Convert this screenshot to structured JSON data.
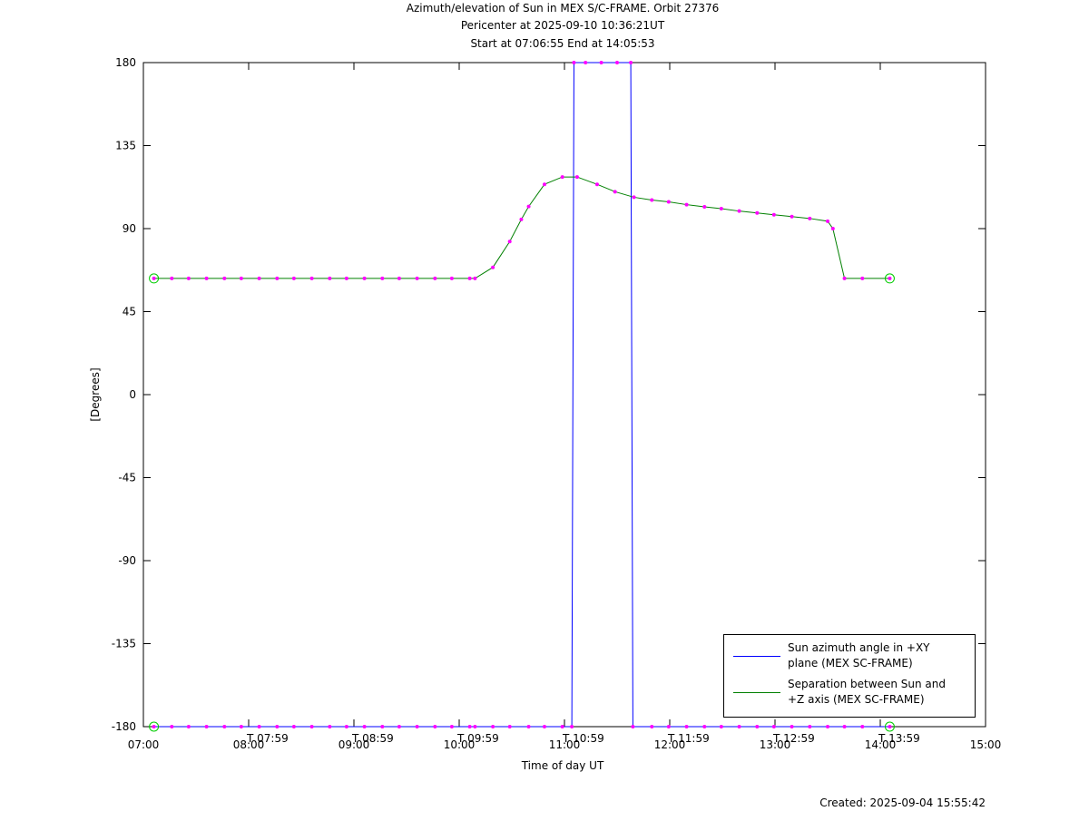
{
  "chart_data": {
    "type": "line",
    "title": "Azimuth/elevation of Sun in MEX S/C-FRAME.  Orbit 27376",
    "subtitle": [
      "Pericenter at 2025-09-10 10:36:21UT",
      "Start at 07:06:55 End at 14:05:53"
    ],
    "xlabel": "Time of day UT",
    "ylabel": "[Degrees]",
    "footer": "Created: 2025-09-04 15:55:42",
    "xlim": [
      7,
      15
    ],
    "xticks": [
      {
        "value": 7,
        "label": "07:00"
      },
      {
        "value": 8,
        "label": "08:00"
      },
      {
        "value": 9,
        "label": "09:00"
      },
      {
        "value": 10,
        "label": "10:00"
      },
      {
        "value": 11,
        "label": "11:00"
      },
      {
        "value": 12,
        "label": "12:00"
      },
      {
        "value": 13,
        "label": "13:00"
      },
      {
        "value": 14,
        "label": "14:00"
      },
      {
        "value": 15,
        "label": "15:00"
      }
    ],
    "ylim": [
      -180,
      180
    ],
    "yticks": [
      180,
      135,
      90,
      45,
      0,
      -45,
      -90,
      -135,
      -180
    ],
    "grid": false,
    "legend": "lower right",
    "marker_color": "#ff00ff",
    "annotations": [
      {
        "x": 7.983,
        "text": "T 07:59"
      },
      {
        "x": 8.983,
        "text": "T 08:59"
      },
      {
        "x": 9.983,
        "text": "T 09:59"
      },
      {
        "x": 10.983,
        "text": "T 10:59"
      },
      {
        "x": 11.983,
        "text": "T 11:59"
      },
      {
        "x": 12.983,
        "text": "T 12:59"
      },
      {
        "x": 13.983,
        "text": "T 13:59"
      }
    ],
    "series": [
      {
        "name": "Sun azimuth angle in +XY plane (MEX SC-FRAME)",
        "color": "#0000ff",
        "x": [
          7.1,
          7.27,
          7.43,
          7.6,
          7.77,
          7.93,
          8.1,
          8.27,
          8.43,
          8.6,
          8.77,
          8.93,
          9.1,
          9.27,
          9.43,
          9.6,
          9.77,
          9.93,
          10.1,
          10.15,
          10.32,
          10.48,
          10.66,
          10.81,
          10.98,
          11.07,
          11.09,
          11.2,
          11.35,
          11.5,
          11.63,
          11.65,
          11.83,
          11.99,
          12.16,
          12.33,
          12.49,
          12.66,
          12.83,
          12.99,
          13.16,
          13.33,
          13.5,
          13.66,
          13.83,
          14.09
        ],
        "values": [
          -180,
          -180,
          -180,
          -180,
          -180,
          -180,
          -180,
          -180,
          -180,
          -180,
          -180,
          -180,
          -180,
          -180,
          -180,
          -180,
          -180,
          -180,
          -180,
          -180,
          -180,
          -180,
          -180,
          -180,
          -180,
          -180,
          180,
          180,
          180,
          180,
          180,
          -180,
          -180,
          -180,
          -180,
          -180,
          -180,
          -180,
          -180,
          -180,
          -180,
          -180,
          -180,
          -180,
          -180,
          -180
        ]
      },
      {
        "name": "Separation between Sun and +Z axis (MEX SC-FRAME)",
        "color": "#008000",
        "x": [
          7.1,
          7.27,
          7.43,
          7.6,
          7.77,
          7.93,
          8.1,
          8.27,
          8.43,
          8.6,
          8.77,
          8.93,
          9.1,
          9.27,
          9.43,
          9.6,
          9.77,
          9.93,
          10.1,
          10.15,
          10.32,
          10.48,
          10.59,
          10.66,
          10.81,
          10.98,
          11.12,
          11.31,
          11.48,
          11.66,
          11.83,
          11.99,
          12.16,
          12.33,
          12.49,
          12.66,
          12.83,
          12.99,
          13.16,
          13.33,
          13.5,
          13.55,
          13.66,
          13.83,
          14.09
        ],
        "values": [
          63,
          63,
          63,
          63,
          63,
          63,
          63,
          63,
          63,
          63,
          63,
          63,
          63,
          63,
          63,
          63,
          63,
          63,
          63,
          63,
          69,
          83,
          95,
          102,
          114,
          118,
          118,
          114,
          110,
          107,
          105.5,
          104.5,
          103,
          101.8,
          100.8,
          99.5,
          98.5,
          97.5,
          96.5,
          95.5,
          94,
          90,
          63,
          63,
          63
        ]
      }
    ]
  }
}
